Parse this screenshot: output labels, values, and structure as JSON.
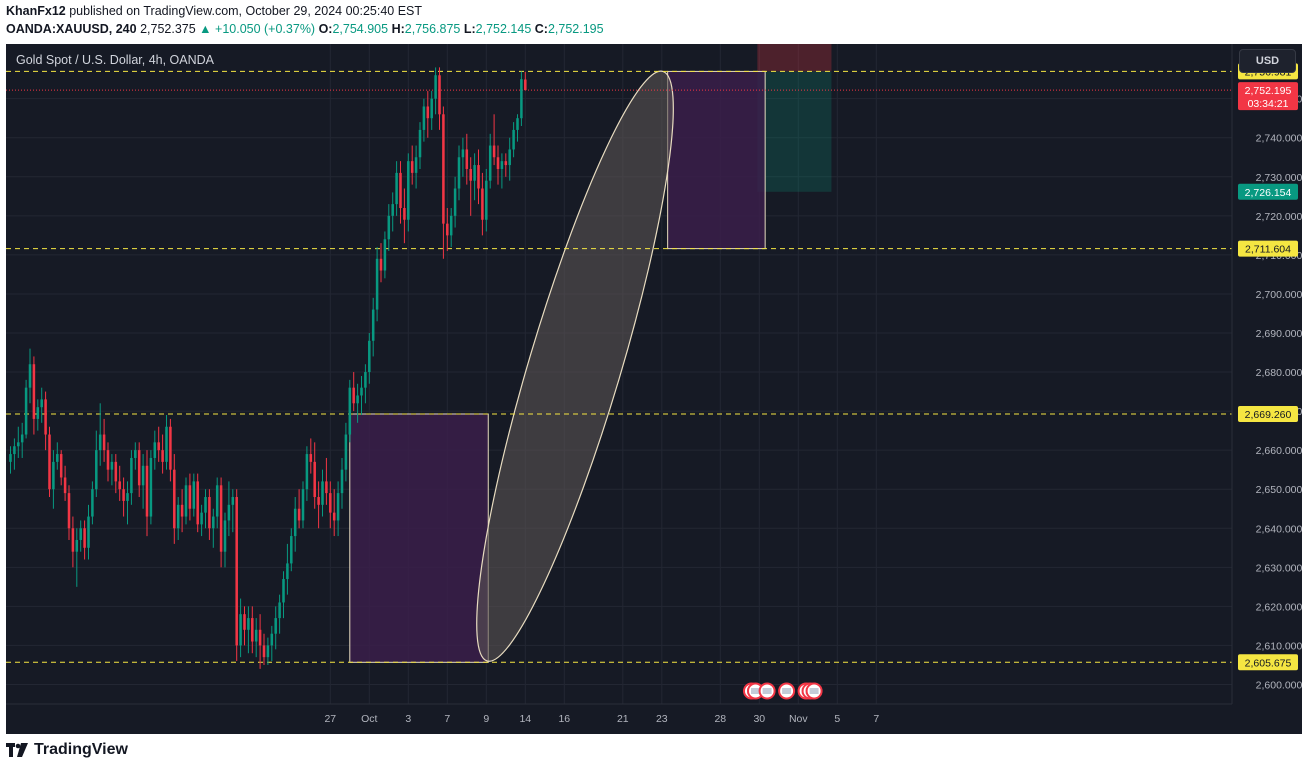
{
  "header": {
    "publisher": "KhanFx12",
    "published_text": "published on TradingView.com, October 29, 2024 00:25:40 EST",
    "symbol": "OANDA:XAUUSD, 240",
    "last": "2,752.375",
    "change": "▲ +10.050 (+0.37%)",
    "o_label": "O:",
    "o_value": "2,754.905",
    "h_label": "H:",
    "h_value": "2,756.875",
    "l_label": "L:",
    "l_value": "2,752.145",
    "c_label": "C:",
    "c_value": "2,752.195"
  },
  "legend": {
    "title": "Gold Spot / U.S. Dollar, 4h, OANDA"
  },
  "currency": "USD",
  "footer": {
    "brand": "TradingView"
  },
  "colors": {
    "background": "#161a25",
    "up": "#089981",
    "down": "#f23645",
    "level_line": "#f5e642",
    "range_box": "#3a1f4a",
    "ellipse_fill": "#5a5454",
    "ellipse_stroke": "#e8dcc0"
  },
  "chart_data": {
    "type": "candlestick",
    "title": "Gold Spot / U.S. Dollar, 4h, OANDA",
    "ylim": [
      2595,
      2764
    ],
    "y_ticks": [
      2600,
      2610,
      2620,
      2630,
      2640,
      2650,
      2660,
      2670,
      2680,
      2690,
      2700,
      2710,
      2720,
      2730,
      2740,
      2750
    ],
    "x_ticks": [
      {
        "label": "27",
        "bar": -13
      },
      {
        "label": "Oct",
        "bar": -3
      },
      {
        "label": "3",
        "bar": 7
      },
      {
        "label": "7",
        "bar": 17
      },
      {
        "label": "9",
        "bar": 27
      },
      {
        "label": "14",
        "bar": 37
      },
      {
        "label": "16",
        "bar": 47
      },
      {
        "label": "21",
        "bar": 62
      },
      {
        "label": "23",
        "bar": 72
      },
      {
        "label": "28",
        "bar": 87
      },
      {
        "label": "30",
        "bar": 97
      },
      {
        "label": "Nov",
        "bar": 107
      },
      {
        "label": "5",
        "bar": 117
      },
      {
        "label": "7",
        "bar": 127
      }
    ],
    "levels": [
      {
        "value": 2756.981,
        "label": "2,756.981"
      },
      {
        "value": 2711.604,
        "label": "2,711.604"
      },
      {
        "value": 2669.26,
        "label": "2,669.260"
      },
      {
        "value": 2605.675,
        "label": "2,605.675"
      }
    ],
    "current_price": {
      "value": 2752.195,
      "label": "2,752.195",
      "countdown": "03:34:21"
    },
    "target_price": {
      "value": 2726.154,
      "label": "2,726.154"
    },
    "range_boxes": [
      {
        "bar_from": -8,
        "bar_to": 27.5,
        "top": 2669.26,
        "bottom": 2605.675
      },
      {
        "bar_from": 73.5,
        "bar_to": 98.5,
        "top": 2756.981,
        "bottom": 2711.604
      }
    ],
    "position": {
      "bar_from": 96.5,
      "bar_to": 115.5,
      "entry": 2756.981,
      "stop": 2764,
      "target": 2726.154
    },
    "trend_ellipse": {
      "start_bar": 27.5,
      "start_price": 2607,
      "end_bar": 72,
      "end_price": 2756,
      "half_width": 2.8
    },
    "event_icons": [
      {
        "bar": 95,
        "count": 2
      },
      {
        "bar": 99,
        "count": 1
      },
      {
        "bar": 104,
        "count": 1
      },
      {
        "bar": 109,
        "count": 3
      }
    ],
    "bar_spacing_px": 3.9,
    "bar0_px": 375,
    "first_bar": -95,
    "candles": [
      [
        2657,
        2661,
        2654,
        2659
      ],
      [
        2659,
        2663,
        2655,
        2661
      ],
      [
        2661,
        2666,
        2658,
        2662
      ],
      [
        2662,
        2667,
        2658,
        2664
      ],
      [
        2664,
        2678,
        2663,
        2676
      ],
      [
        2676,
        2686,
        2672,
        2682
      ],
      [
        2682,
        2684,
        2664,
        2668
      ],
      [
        2668,
        2673,
        2665,
        2671
      ],
      [
        2671,
        2676,
        2667,
        2673
      ],
      [
        2673,
        2675,
        2660,
        2664
      ],
      [
        2664,
        2666,
        2648,
        2650
      ],
      [
        2650,
        2660,
        2645,
        2657
      ],
      [
        2657,
        2662,
        2655,
        2659
      ],
      [
        2659,
        2660,
        2651,
        2653
      ],
      [
        2653,
        2656,
        2647,
        2649
      ],
      [
        2649,
        2651,
        2637,
        2640
      ],
      [
        2640,
        2643,
        2630,
        2634
      ],
      [
        2634,
        2640,
        2625,
        2637
      ],
      [
        2637,
        2642,
        2634,
        2640
      ],
      [
        2640,
        2642,
        2632,
        2635
      ],
      [
        2635,
        2646,
        2632,
        2643
      ],
      [
        2643,
        2652,
        2641,
        2650
      ],
      [
        2650,
        2665,
        2648,
        2660
      ],
      [
        2660,
        2672,
        2656,
        2664
      ],
      [
        2664,
        2668,
        2657,
        2660
      ],
      [
        2660,
        2662,
        2652,
        2655
      ],
      [
        2655,
        2659,
        2651,
        2657
      ],
      [
        2657,
        2659,
        2649,
        2652
      ],
      [
        2652,
        2656,
        2647,
        2650
      ],
      [
        2650,
        2653,
        2643,
        2647
      ],
      [
        2647,
        2652,
        2641,
        2649
      ],
      [
        2649,
        2660,
        2646,
        2658
      ],
      [
        2658,
        2662,
        2655,
        2660
      ],
      [
        2660,
        2662,
        2648,
        2651
      ],
      [
        2651,
        2659,
        2645,
        2656
      ],
      [
        2656,
        2660,
        2638,
        2643
      ],
      [
        2643,
        2660,
        2641,
        2658
      ],
      [
        2658,
        2665,
        2655,
        2662
      ],
      [
        2662,
        2666,
        2657,
        2660
      ],
      [
        2660,
        2664,
        2654,
        2657
      ],
      [
        2657,
        2669,
        2655,
        2666
      ],
      [
        2666,
        2668,
        2652,
        2655
      ],
      [
        2655,
        2659,
        2636,
        2640
      ],
      [
        2640,
        2648,
        2637,
        2646
      ],
      [
        2646,
        2650,
        2639,
        2643
      ],
      [
        2643,
        2653,
        2641,
        2651
      ],
      [
        2651,
        2654,
        2642,
        2645
      ],
      [
        2645,
        2654,
        2643,
        2652
      ],
      [
        2652,
        2654,
        2639,
        2641
      ],
      [
        2641,
        2646,
        2638,
        2644
      ],
      [
        2644,
        2650,
        2640,
        2648
      ],
      [
        2648,
        2650,
        2637,
        2640
      ],
      [
        2640,
        2645,
        2635,
        2643
      ],
      [
        2643,
        2653,
        2640,
        2651
      ],
      [
        2651,
        2653,
        2630,
        2634
      ],
      [
        2634,
        2644,
        2630,
        2642
      ],
      [
        2642,
        2652,
        2638,
        2646
      ],
      [
        2646,
        2650,
        2639,
        2648
      ],
      [
        2648,
        2650,
        2606,
        2610
      ],
      [
        2610,
        2622,
        2607,
        2618
      ],
      [
        2618,
        2620,
        2610,
        2614
      ],
      [
        2614,
        2620,
        2608,
        2617
      ],
      [
        2617,
        2620,
        2608,
        2611
      ],
      [
        2611,
        2617,
        2607,
        2614
      ],
      [
        2614,
        2618,
        2604,
        2610
      ],
      [
        2610,
        2613,
        2605,
        2607
      ],
      [
        2607,
        2612,
        2605,
        2610
      ],
      [
        2610,
        2615,
        2606,
        2613
      ],
      [
        2613,
        2620,
        2609,
        2617
      ],
      [
        2617,
        2623,
        2613,
        2621
      ],
      [
        2621,
        2629,
        2617,
        2627
      ],
      [
        2627,
        2636,
        2623,
        2631
      ],
      [
        2631,
        2640,
        2629,
        2638
      ],
      [
        2638,
        2648,
        2634,
        2645
      ],
      [
        2645,
        2650,
        2640,
        2642
      ],
      [
        2642,
        2652,
        2640,
        2650
      ],
      [
        2650,
        2661,
        2647,
        2659
      ],
      [
        2659,
        2663,
        2654,
        2657
      ],
      [
        2657,
        2662,
        2645,
        2648
      ],
      [
        2648,
        2652,
        2640,
        2646
      ],
      [
        2646,
        2655,
        2643,
        2652
      ],
      [
        2652,
        2658,
        2646,
        2649
      ],
      [
        2649,
        2652,
        2640,
        2644
      ],
      [
        2644,
        2650,
        2638,
        2642
      ],
      [
        2642,
        2652,
        2638,
        2649
      ],
      [
        2649,
        2658,
        2645,
        2655
      ],
      [
        2655,
        2667,
        2652,
        2664
      ],
      [
        2664,
        2678,
        2662,
        2676
      ],
      [
        2676,
        2680,
        2670,
        2672
      ],
      [
        2672,
        2677,
        2667,
        2674
      ],
      [
        2674,
        2679,
        2669,
        2676
      ],
      [
        2676,
        2682,
        2672,
        2680
      ],
      [
        2680,
        2690,
        2677,
        2688
      ],
      [
        2688,
        2699,
        2684,
        2696
      ],
      [
        2696,
        2712,
        2693,
        2709
      ],
      [
        2709,
        2713,
        2703,
        2706
      ],
      [
        2706,
        2716,
        2704,
        2714
      ],
      [
        2714,
        2723,
        2711,
        2720
      ],
      [
        2720,
        2726,
        2716,
        2723
      ],
      [
        2723,
        2734,
        2720,
        2731
      ],
      [
        2731,
        2734,
        2718,
        2722
      ],
      [
        2722,
        2727,
        2713,
        2719
      ],
      [
        2719,
        2736,
        2716,
        2734
      ],
      [
        2734,
        2738,
        2728,
        2731
      ],
      [
        2731,
        2738,
        2727,
        2735
      ],
      [
        2735,
        2744,
        2732,
        2742
      ],
      [
        2742,
        2750,
        2739,
        2748
      ],
      [
        2748,
        2752,
        2740,
        2745
      ],
      [
        2745,
        2752,
        2742,
        2750
      ],
      [
        2750,
        2758,
        2746,
        2756
      ],
      [
        2756,
        2758,
        2742,
        2746
      ],
      [
        2746,
        2748,
        2709,
        2718
      ],
      [
        2718,
        2722,
        2711,
        2715
      ],
      [
        2715,
        2722,
        2712,
        2720
      ],
      [
        2720,
        2730,
        2717,
        2727
      ],
      [
        2727,
        2738,
        2724,
        2735
      ],
      [
        2735,
        2740,
        2730,
        2737
      ],
      [
        2737,
        2741,
        2728,
        2732
      ],
      [
        2732,
        2735,
        2720,
        2729
      ],
      [
        2729,
        2736,
        2724,
        2733
      ],
      [
        2733,
        2737,
        2723,
        2727
      ],
      [
        2727,
        2731,
        2715,
        2719
      ],
      [
        2719,
        2732,
        2716,
        2729
      ],
      [
        2729,
        2741,
        2727,
        2738
      ],
      [
        2738,
        2746,
        2733,
        2735
      ],
      [
        2735,
        2738,
        2728,
        2732
      ],
      [
        2732,
        2736,
        2727,
        2734
      ],
      [
        2734,
        2736,
        2730,
        2733
      ],
      [
        2733,
        2740,
        2729,
        2737
      ],
      [
        2737,
        2744,
        2735,
        2742
      ],
      [
        2742,
        2746,
        2739,
        2745
      ],
      [
        2745,
        2757,
        2743,
        2755
      ],
      [
        2754.905,
        2756.875,
        2752.145,
        2752.195
      ]
    ]
  }
}
